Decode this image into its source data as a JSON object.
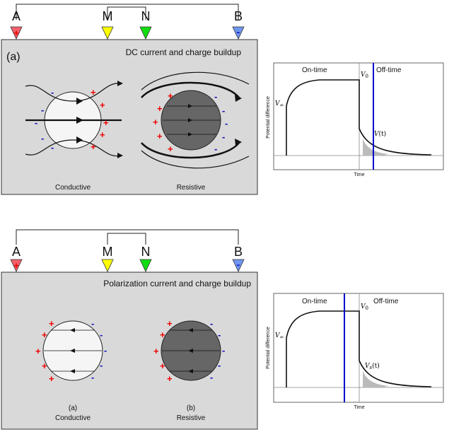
{
  "electrodes": {
    "a": "A",
    "m": "M",
    "n": "N",
    "b": "B",
    "a_sign": "+",
    "b_sign": "-"
  },
  "top_panel": {
    "tag": "(a)",
    "title": "DC current and charge buildup",
    "left_label": "Conductive",
    "right_label": "Resistive",
    "plus": "+",
    "minus": "-"
  },
  "bottom_panel": {
    "title": "Polarization current and charge buildup",
    "left_tag": "(a)",
    "left_label": "Conductive",
    "right_tag": "(b)",
    "right_label": "Resistive",
    "plus": "+",
    "minus": "-"
  },
  "top_plot": {
    "on_time": "On-time",
    "off_time": "Off-time",
    "v0": "V",
    "v0_sub": "0",
    "vinf": "V",
    "vinf_sub": "∞",
    "vs": "V",
    "vs_arg": "(t)",
    "y_label": "Potential difference",
    "x_label": "Time"
  },
  "bottom_plot": {
    "on_time": "On-time",
    "off_time": "Off-time",
    "v0": "V",
    "v0_sub": "0",
    "vinf": "V",
    "vinf_sub": "∞",
    "vs": "V",
    "vs_sub": "s",
    "vs_arg": "(t)",
    "y_label": "Potential difference",
    "x_label": "Time"
  },
  "colors": {
    "panel_bg": "#d9d9d9",
    "a_marker": "#f4606a",
    "m_marker": "#ffff00",
    "n_marker": "#11dd11",
    "b_marker": "#6f96f0",
    "plus": "#ee0000",
    "minus": "#1111bb",
    "cursor_line": "#0000cc",
    "conductive_sphere": "#f5f5f5",
    "resistive_sphere": "#666666"
  }
}
